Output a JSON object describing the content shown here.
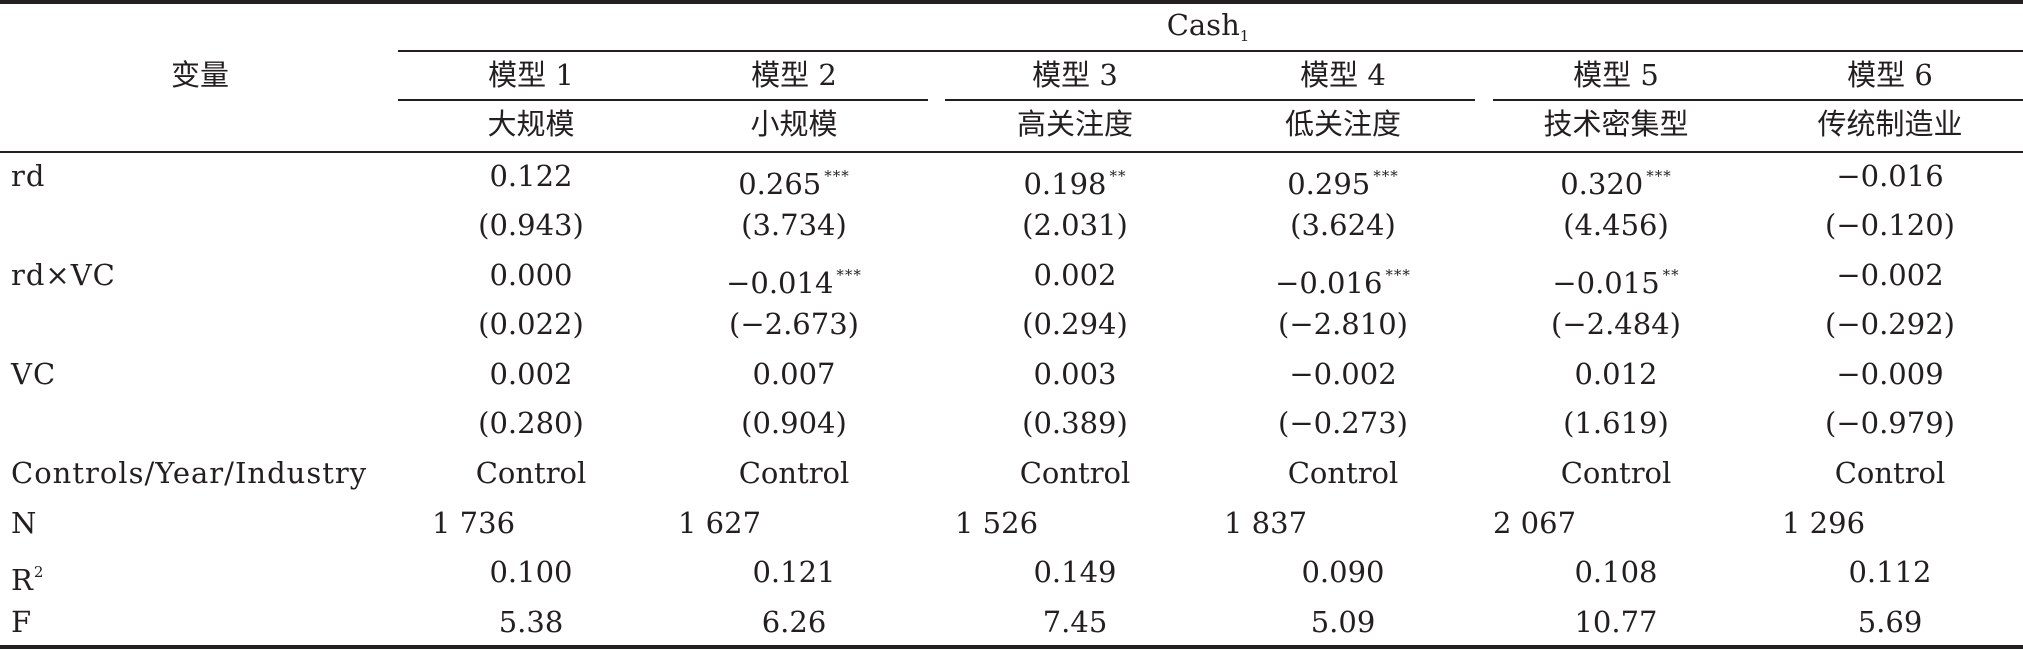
{
  "table": {
    "header": {
      "var_label": "变量",
      "dep_var": "Cash",
      "dep_var_sub": "1",
      "models": [
        {
          "name": "模型 1",
          "group": "大规模"
        },
        {
          "name": "模型 2",
          "group": "小规模"
        },
        {
          "name": "模型 3",
          "group": "高关注度"
        },
        {
          "name": "模型 4",
          "group": "低关注度"
        },
        {
          "name": "模型 5",
          "group": "技术密集型"
        },
        {
          "name": "模型 6",
          "group": "传统制造业"
        }
      ]
    },
    "rows": [
      {
        "label": "rd",
        "cells": [
          {
            "v": "0.122",
            "s": ""
          },
          {
            "v": "0.265",
            "s": "***"
          },
          {
            "v": "0.198",
            "s": "**"
          },
          {
            "v": "0.295",
            "s": "***"
          },
          {
            "v": "0.320",
            "s": "***"
          },
          {
            "v": "−0.016",
            "s": ""
          }
        ]
      },
      {
        "label": "",
        "cells": [
          {
            "v": "(0.943)",
            "s": ""
          },
          {
            "v": "(3.734)",
            "s": ""
          },
          {
            "v": "(2.031)",
            "s": ""
          },
          {
            "v": "(3.624)",
            "s": ""
          },
          {
            "v": "(4.456)",
            "s": ""
          },
          {
            "v": "(−0.120)",
            "s": ""
          }
        ]
      },
      {
        "label": "rd×VC",
        "cells": [
          {
            "v": "0.000",
            "s": ""
          },
          {
            "v": "−0.014",
            "s": "***"
          },
          {
            "v": "0.002",
            "s": ""
          },
          {
            "v": "−0.016",
            "s": "***"
          },
          {
            "v": "−0.015",
            "s": "**"
          },
          {
            "v": "−0.002",
            "s": ""
          }
        ]
      },
      {
        "label": "",
        "cells": [
          {
            "v": "(0.022)",
            "s": ""
          },
          {
            "v": "(−2.673)",
            "s": ""
          },
          {
            "v": "(0.294)",
            "s": ""
          },
          {
            "v": "(−2.810)",
            "s": ""
          },
          {
            "v": "(−2.484)",
            "s": ""
          },
          {
            "v": "(−0.292)",
            "s": ""
          }
        ]
      },
      {
        "label": "VC",
        "cells": [
          {
            "v": "0.002",
            "s": ""
          },
          {
            "v": "0.007",
            "s": ""
          },
          {
            "v": "0.003",
            "s": ""
          },
          {
            "v": "−0.002",
            "s": ""
          },
          {
            "v": "0.012",
            "s": ""
          },
          {
            "v": "−0.009",
            "s": ""
          }
        ]
      },
      {
        "label": "",
        "cells": [
          {
            "v": "(0.280)",
            "s": ""
          },
          {
            "v": "(0.904)",
            "s": ""
          },
          {
            "v": "(0.389)",
            "s": ""
          },
          {
            "v": "(−0.273)",
            "s": ""
          },
          {
            "v": "(1.619)",
            "s": ""
          },
          {
            "v": "(−0.979)",
            "s": ""
          }
        ]
      },
      {
        "label": "Controls/Year/Industry",
        "cells": [
          {
            "v": "Control",
            "s": ""
          },
          {
            "v": "Control",
            "s": ""
          },
          {
            "v": "Control",
            "s": ""
          },
          {
            "v": "Control",
            "s": ""
          },
          {
            "v": "Control",
            "s": ""
          },
          {
            "v": "Control",
            "s": ""
          }
        ]
      },
      {
        "label": "N",
        "cells": [
          {
            "v": "1 736",
            "s": ""
          },
          {
            "v": "1 627",
            "s": ""
          },
          {
            "v": "1 526",
            "s": ""
          },
          {
            "v": "1 837",
            "s": ""
          },
          {
            "v": "2 067",
            "s": ""
          },
          {
            "v": "1 296",
            "s": ""
          }
        ]
      },
      {
        "label": "R",
        "label_sup": "2",
        "cells": [
          {
            "v": "0.100",
            "s": ""
          },
          {
            "v": "0.121",
            "s": ""
          },
          {
            "v": "0.149",
            "s": ""
          },
          {
            "v": "0.090",
            "s": ""
          },
          {
            "v": "0.108",
            "s": ""
          },
          {
            "v": "0.112",
            "s": ""
          }
        ]
      },
      {
        "label": "F",
        "cells": [
          {
            "v": "5.38",
            "s": ""
          },
          {
            "v": "6.26",
            "s": ""
          },
          {
            "v": "7.45",
            "s": ""
          },
          {
            "v": "5.09",
            "s": ""
          },
          {
            "v": "10.77",
            "s": ""
          },
          {
            "v": "5.69",
            "s": ""
          }
        ]
      }
    ]
  }
}
